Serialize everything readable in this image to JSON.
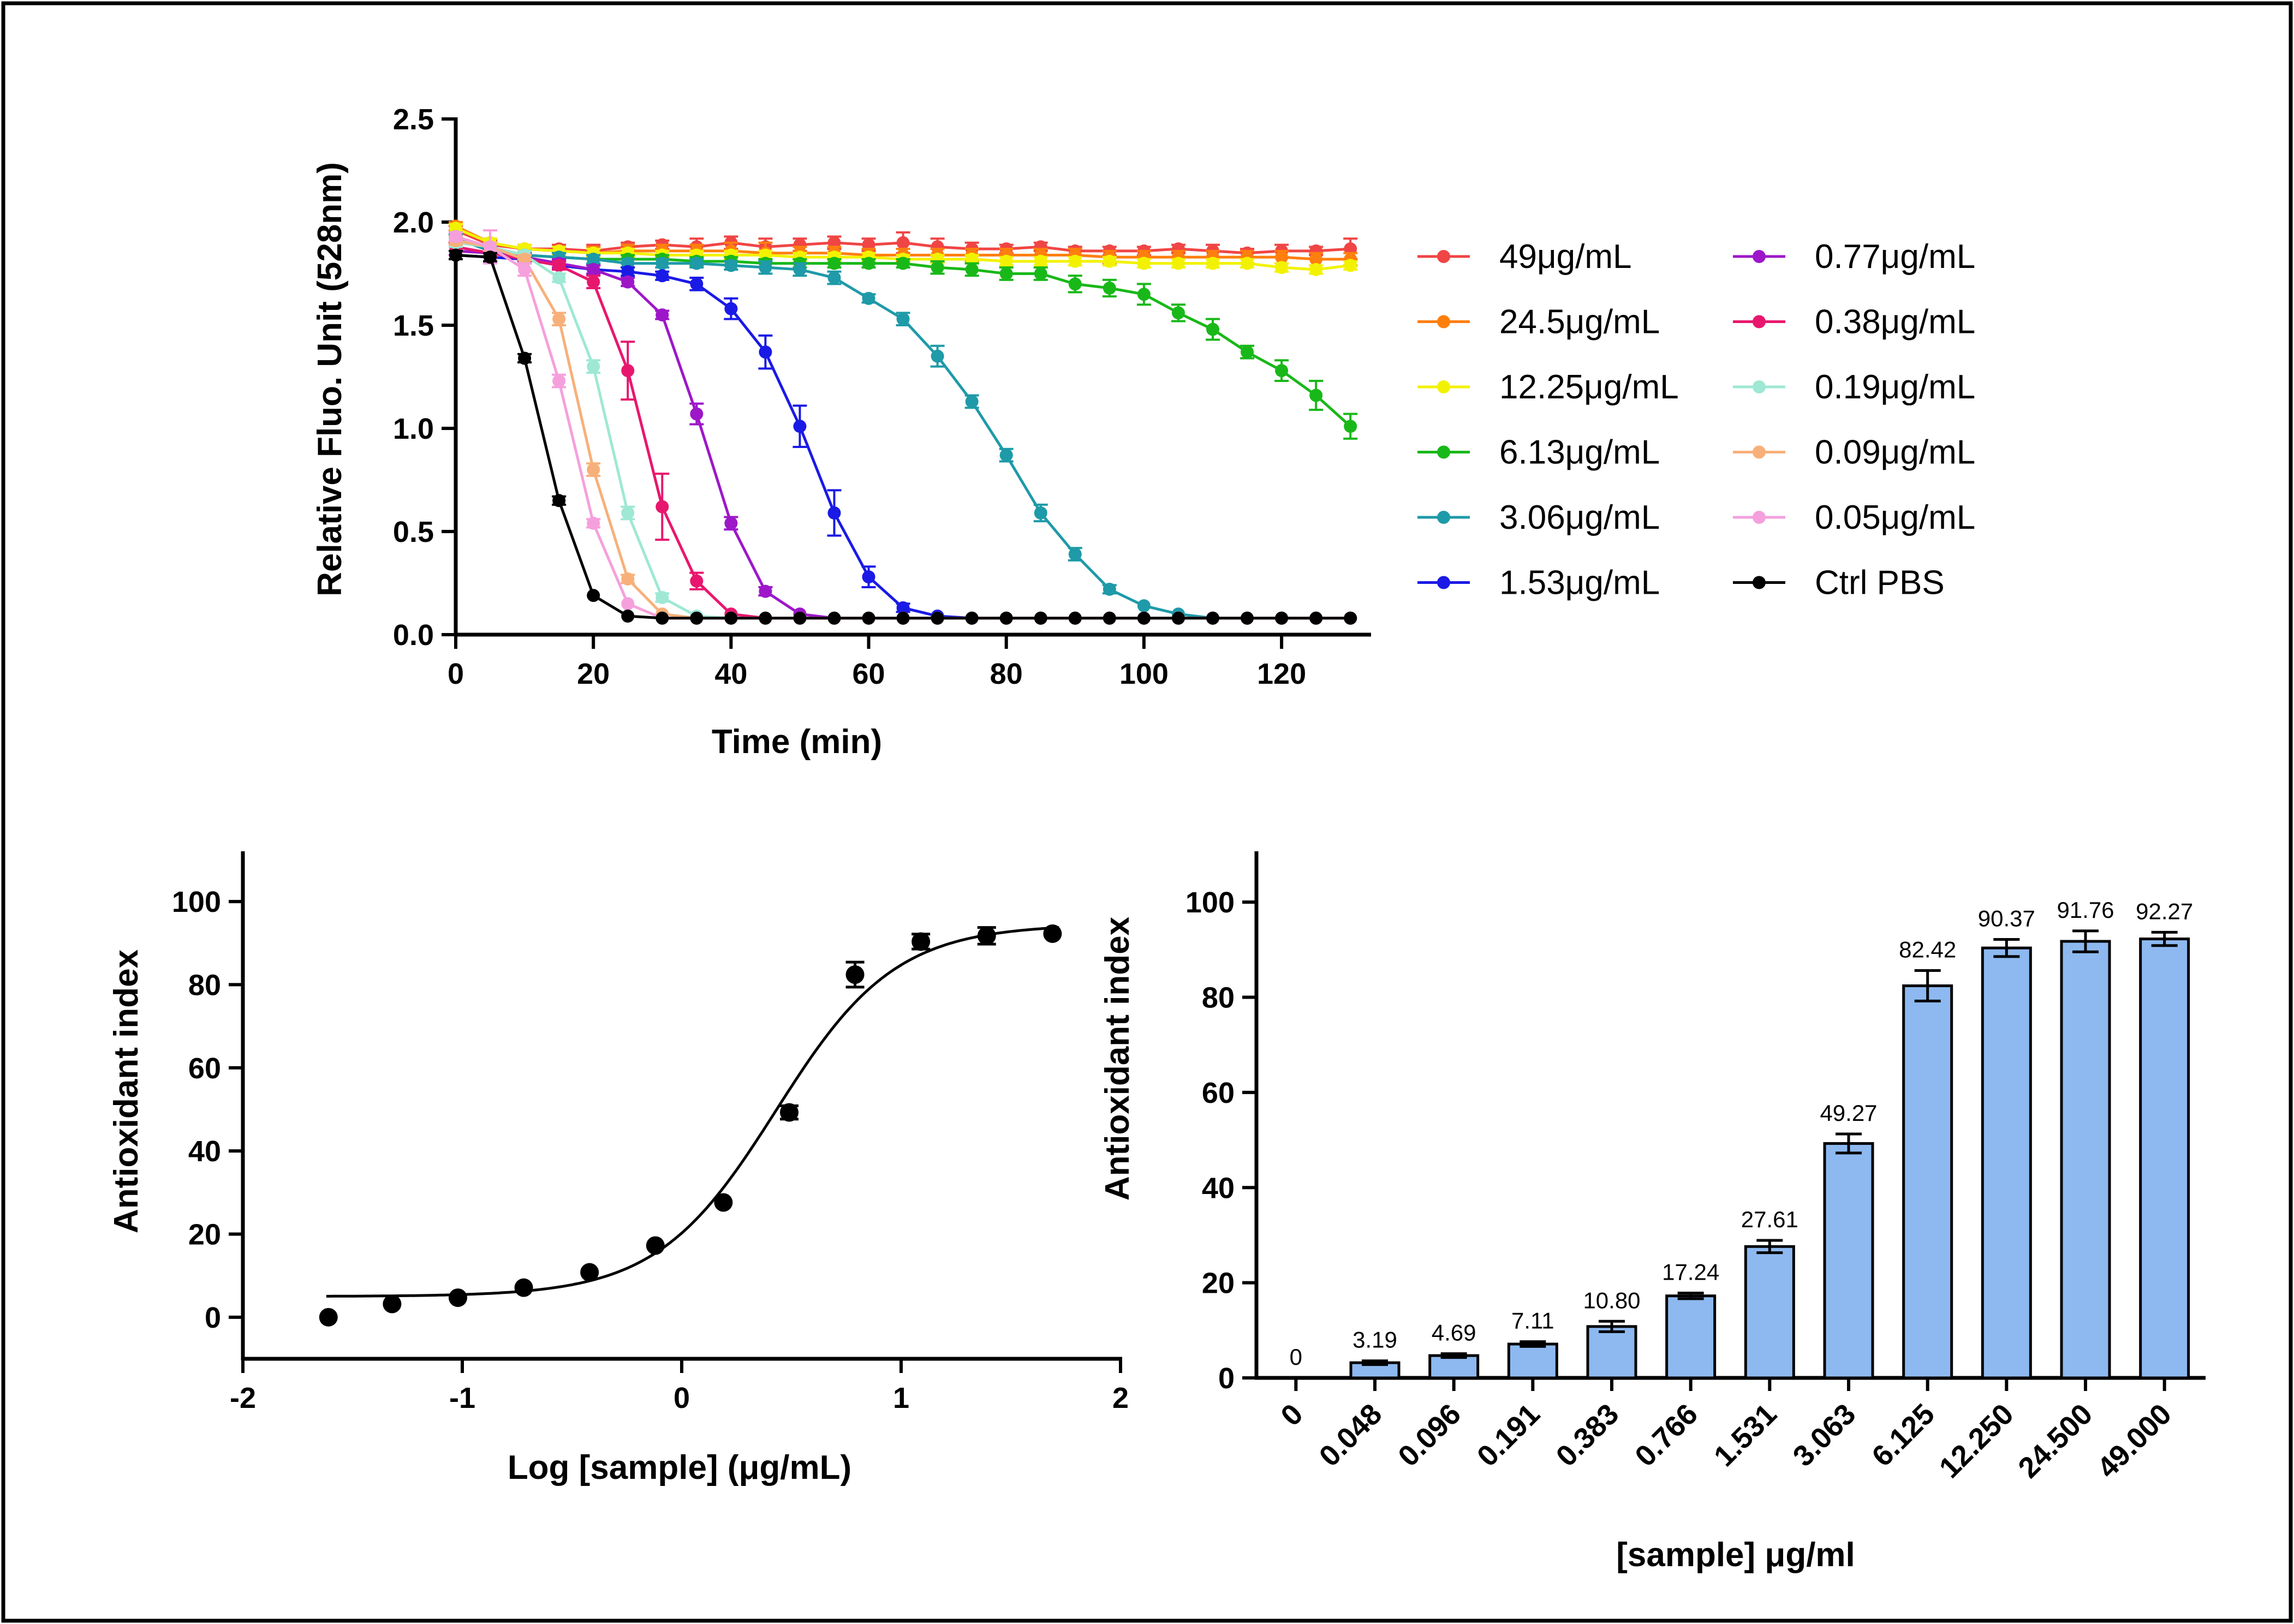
{
  "colors": {
    "frame": "#000000",
    "bar_fill": "#8db9f0",
    "series": {
      "49": "#f04545",
      "24.5": "#ff7f0e",
      "12.25": "#f2f200",
      "6.13": "#19b819",
      "3.06": "#1f9aa8",
      "1.53": "#1a1ae6",
      "0.77": "#9d17c9",
      "0.38": "#e8176e",
      "0.19": "#9ee8d4",
      "0.09": "#f7b07a",
      "0.05": "#f5a0dc",
      "ctrl": "#000000"
    }
  },
  "chart_data": [
    {
      "type": "line",
      "title": "",
      "xlabel": "Time (min)",
      "ylabel": "Relative Fluo. Unit (528nm)",
      "xlim": [
        0,
        133
      ],
      "ylim": [
        0,
        2.5
      ],
      "xticks": [
        0,
        20,
        40,
        60,
        80,
        100,
        120
      ],
      "yticks": [
        0.0,
        0.5,
        1.0,
        1.5,
        2.0,
        2.5
      ],
      "ytick_labels": [
        "0.0",
        "0.5",
        "1.0",
        "1.5",
        "2.0",
        "2.5"
      ],
      "legend_position": "right",
      "x": [
        0,
        5,
        10,
        15,
        20,
        25,
        30,
        35,
        40,
        45,
        50,
        55,
        60,
        65,
        70,
        75,
        80,
        85,
        90,
        95,
        100,
        105,
        110,
        115,
        120,
        125,
        130
      ],
      "series": [
        {
          "key": "49",
          "name": "49μg/mL",
          "values": [
            1.96,
            1.89,
            1.87,
            1.87,
            1.86,
            1.88,
            1.89,
            1.88,
            1.9,
            1.88,
            1.89,
            1.9,
            1.89,
            1.9,
            1.88,
            1.87,
            1.87,
            1.88,
            1.86,
            1.86,
            1.86,
            1.87,
            1.86,
            1.85,
            1.86,
            1.86,
            1.87
          ],
          "err": [
            0.02,
            0.02,
            0.02,
            0.02,
            0.03,
            0.02,
            0.02,
            0.04,
            0.03,
            0.04,
            0.03,
            0.03,
            0.03,
            0.05,
            0.04,
            0.03,
            0.02,
            0.02,
            0.02,
            0.02,
            0.02,
            0.02,
            0.03,
            0.02,
            0.03,
            0.02,
            0.05
          ]
        },
        {
          "key": "24.5",
          "name": "24.5μg/mL",
          "values": [
            1.98,
            1.9,
            1.87,
            1.86,
            1.85,
            1.86,
            1.86,
            1.86,
            1.86,
            1.85,
            1.85,
            1.85,
            1.84,
            1.84,
            1.84,
            1.84,
            1.84,
            1.84,
            1.84,
            1.83,
            1.83,
            1.83,
            1.83,
            1.83,
            1.83,
            1.82,
            1.82
          ],
          "err": [
            0.02,
            0.02,
            0.02,
            0.02,
            0.03,
            0.03,
            0.03,
            0.03,
            0.04,
            0.05,
            0.03,
            0.03,
            0.03,
            0.03,
            0.03,
            0.03,
            0.03,
            0.03,
            0.03,
            0.03,
            0.03,
            0.03,
            0.03,
            0.03,
            0.03,
            0.03,
            0.03
          ]
        },
        {
          "key": "12.25",
          "name": "12.25μg/mL",
          "values": [
            1.97,
            1.9,
            1.87,
            1.86,
            1.85,
            1.85,
            1.84,
            1.84,
            1.84,
            1.84,
            1.83,
            1.83,
            1.83,
            1.82,
            1.82,
            1.82,
            1.81,
            1.81,
            1.81,
            1.81,
            1.8,
            1.8,
            1.8,
            1.8,
            1.78,
            1.77,
            1.79
          ],
          "err": [
            0.02,
            0.02,
            0.02,
            0.02,
            0.02,
            0.02,
            0.02,
            0.02,
            0.02,
            0.02,
            0.02,
            0.02,
            0.02,
            0.02,
            0.02,
            0.02,
            0.02,
            0.02,
            0.02,
            0.02,
            0.02,
            0.02,
            0.02,
            0.02,
            0.02,
            0.02,
            0.02
          ]
        },
        {
          "key": "6.13",
          "name": "6.13μg/mL",
          "values": [
            1.93,
            1.86,
            1.84,
            1.83,
            1.82,
            1.82,
            1.82,
            1.81,
            1.81,
            1.8,
            1.8,
            1.8,
            1.8,
            1.8,
            1.78,
            1.77,
            1.75,
            1.75,
            1.7,
            1.68,
            1.65,
            1.56,
            1.48,
            1.37,
            1.28,
            1.16,
            1.01
          ],
          "err": [
            0.02,
            0.02,
            0.02,
            0.02,
            0.02,
            0.02,
            0.02,
            0.02,
            0.02,
            0.02,
            0.02,
            0.02,
            0.02,
            0.02,
            0.03,
            0.03,
            0.03,
            0.03,
            0.04,
            0.04,
            0.05,
            0.04,
            0.05,
            0.03,
            0.05,
            0.07,
            0.06
          ]
        },
        {
          "key": "3.06",
          "name": "3.06μg/mL",
          "values": [
            1.92,
            1.86,
            1.84,
            1.83,
            1.82,
            1.8,
            1.8,
            1.8,
            1.79,
            1.78,
            1.77,
            1.73,
            1.63,
            1.53,
            1.35,
            1.13,
            0.87,
            0.59,
            0.39,
            0.22,
            0.14,
            0.1,
            0.08,
            0.08,
            0.08,
            0.08,
            0.08
          ],
          "err": [
            0.02,
            0.02,
            0.02,
            0.02,
            0.02,
            0.02,
            0.02,
            0.02,
            0.02,
            0.03,
            0.03,
            0.03,
            0.02,
            0.03,
            0.05,
            0.03,
            0.03,
            0.04,
            0.03,
            0.02,
            0.01,
            0.01,
            0.01,
            0.01,
            0.01,
            0.01,
            0.01
          ]
        },
        {
          "key": "1.53",
          "name": "1.53μg/mL",
          "values": [
            1.84,
            1.83,
            1.82,
            1.79,
            1.77,
            1.76,
            1.74,
            1.7,
            1.58,
            1.37,
            1.01,
            0.59,
            0.28,
            0.13,
            0.09,
            0.08,
            0.08,
            0.08,
            0.08,
            0.08,
            0.08,
            0.08,
            0.08,
            0.08,
            0.08,
            0.08,
            0.08
          ],
          "err": [
            0.02,
            0.02,
            0.02,
            0.02,
            0.02,
            0.02,
            0.02,
            0.03,
            0.05,
            0.08,
            0.1,
            0.11,
            0.05,
            0.02,
            0.01,
            0.01,
            0.01,
            0.01,
            0.01,
            0.01,
            0.01,
            0.01,
            0.01,
            0.01,
            0.01,
            0.01,
            0.01
          ]
        },
        {
          "key": "0.77",
          "name": "0.77μg/mL",
          "values": [
            1.86,
            1.85,
            1.83,
            1.8,
            1.77,
            1.71,
            1.55,
            1.07,
            0.54,
            0.21,
            0.1,
            0.08,
            0.08,
            0.08,
            0.08,
            0.08,
            0.08,
            0.08,
            0.08,
            0.08,
            0.08,
            0.08,
            0.08,
            0.08,
            0.08,
            0.08,
            0.08
          ],
          "err": [
            0.02,
            0.02,
            0.02,
            0.02,
            0.02,
            0.02,
            0.02,
            0.05,
            0.03,
            0.02,
            0.01,
            0.01,
            0.01,
            0.01,
            0.01,
            0.01,
            0.01,
            0.01,
            0.01,
            0.01,
            0.01,
            0.01,
            0.01,
            0.01,
            0.01,
            0.01,
            0.01
          ]
        },
        {
          "key": "0.38",
          "name": "0.38μg/mL",
          "values": [
            1.88,
            1.85,
            1.82,
            1.79,
            1.71,
            1.28,
            0.62,
            0.26,
            0.1,
            0.08,
            0.08,
            0.08,
            0.08,
            0.08,
            0.08,
            0.08,
            0.08,
            0.08,
            0.08,
            0.08,
            0.08,
            0.08,
            0.08,
            0.08,
            0.08,
            0.08,
            0.08
          ],
          "err": [
            0.02,
            0.02,
            0.02,
            0.02,
            0.03,
            0.14,
            0.16,
            0.04,
            0.01,
            0.01,
            0.01,
            0.01,
            0.01,
            0.01,
            0.01,
            0.01,
            0.01,
            0.01,
            0.01,
            0.01,
            0.01,
            0.01,
            0.01,
            0.01,
            0.01,
            0.01,
            0.01
          ]
        },
        {
          "key": "0.19",
          "name": "0.19μg/mL",
          "values": [
            1.9,
            1.88,
            1.84,
            1.73,
            1.3,
            0.59,
            0.18,
            0.09,
            0.08,
            0.08,
            0.08,
            0.08,
            0.08,
            0.08,
            0.08,
            0.08,
            0.08,
            0.08,
            0.08,
            0.08,
            0.08,
            0.08,
            0.08,
            0.08,
            0.08,
            0.08,
            0.08
          ],
          "err": [
            0.02,
            0.02,
            0.02,
            0.02,
            0.03,
            0.03,
            0.02,
            0.01,
            0.01,
            0.01,
            0.01,
            0.01,
            0.01,
            0.01,
            0.01,
            0.01,
            0.01,
            0.01,
            0.01,
            0.01,
            0.01,
            0.01,
            0.01,
            0.01,
            0.01,
            0.01,
            0.01
          ]
        },
        {
          "key": "0.09",
          "name": "0.09μg/mL",
          "values": [
            1.91,
            1.88,
            1.82,
            1.53,
            0.8,
            0.27,
            0.1,
            0.08,
            0.08,
            0.08,
            0.08,
            0.08,
            0.08,
            0.08,
            0.08,
            0.08,
            0.08,
            0.08,
            0.08,
            0.08,
            0.08,
            0.08,
            0.08,
            0.08,
            0.08,
            0.08,
            0.08
          ],
          "err": [
            0.02,
            0.02,
            0.02,
            0.03,
            0.03,
            0.02,
            0.01,
            0.01,
            0.01,
            0.01,
            0.01,
            0.01,
            0.01,
            0.01,
            0.01,
            0.01,
            0.01,
            0.01,
            0.01,
            0.01,
            0.01,
            0.01,
            0.01,
            0.01,
            0.01,
            0.01,
            0.01
          ]
        },
        {
          "key": "0.05",
          "name": "0.05μg/mL",
          "values": [
            1.93,
            1.88,
            1.77,
            1.23,
            0.54,
            0.15,
            0.08,
            0.08,
            0.08,
            0.08,
            0.08,
            0.08,
            0.08,
            0.08,
            0.08,
            0.08,
            0.08,
            0.08,
            0.08,
            0.08,
            0.08,
            0.08,
            0.08,
            0.08,
            0.08,
            0.08,
            0.08
          ],
          "err": [
            0.02,
            0.08,
            0.03,
            0.03,
            0.02,
            0.01,
            0.01,
            0.01,
            0.01,
            0.01,
            0.01,
            0.01,
            0.01,
            0.01,
            0.01,
            0.01,
            0.01,
            0.01,
            0.01,
            0.01,
            0.01,
            0.01,
            0.01,
            0.01,
            0.01,
            0.01,
            0.01
          ]
        },
        {
          "key": "ctrl",
          "name": "Ctrl PBS",
          "values": [
            1.84,
            1.83,
            1.34,
            0.65,
            0.19,
            0.09,
            0.08,
            0.08,
            0.08,
            0.08,
            0.08,
            0.08,
            0.08,
            0.08,
            0.08,
            0.08,
            0.08,
            0.08,
            0.08,
            0.08,
            0.08,
            0.08,
            0.08,
            0.08,
            0.08,
            0.08,
            0.08
          ],
          "err": [
            0.02,
            0.02,
            0.02,
            0.02,
            0.01,
            0.01,
            0.01,
            0.01,
            0.01,
            0.01,
            0.01,
            0.01,
            0.01,
            0.01,
            0.01,
            0.01,
            0.01,
            0.01,
            0.01,
            0.01,
            0.01,
            0.01,
            0.01,
            0.01,
            0.01,
            0.01,
            0.01
          ]
        }
      ]
    },
    {
      "type": "scatter",
      "title": "",
      "xlabel": "Log [sample] (μg/mL)",
      "ylabel": "Antioxidant index",
      "xlim": [
        -2,
        2
      ],
      "ylim": [
        -10,
        110
      ],
      "xticks": [
        -2,
        -1,
        0,
        1,
        2
      ],
      "yticks": [
        0,
        20,
        40,
        60,
        80,
        100
      ],
      "points": [
        {
          "x": -1.61,
          "y": 0,
          "err": 0.5
        },
        {
          "x": -1.32,
          "y": 3.19,
          "err": 0.5
        },
        {
          "x": -1.02,
          "y": 4.69,
          "err": 0.5
        },
        {
          "x": -0.72,
          "y": 7.11,
          "err": 0.5
        },
        {
          "x": -0.42,
          "y": 10.8,
          "err": 0.8
        },
        {
          "x": -0.12,
          "y": 17.24,
          "err": 0.5
        },
        {
          "x": 0.19,
          "y": 27.61,
          "err": 1.2
        },
        {
          "x": 0.49,
          "y": 49.27,
          "err": 1.6
        },
        {
          "x": 0.79,
          "y": 82.42,
          "err": 3.0
        },
        {
          "x": 1.09,
          "y": 90.37,
          "err": 1.8
        },
        {
          "x": 1.39,
          "y": 91.76,
          "err": 2.0
        },
        {
          "x": 1.69,
          "y": 92.27,
          "err": 1.2
        }
      ],
      "fit": {
        "model": "sigmoid",
        "bottom": 5,
        "top": 94.5,
        "logEC50": 0.43,
        "hillslope": 1.6
      }
    },
    {
      "type": "bar",
      "title": "",
      "xlabel": "[sample] μg/ml",
      "ylabel": "Antioxidant index",
      "ylim": [
        0,
        110
      ],
      "yticks": [
        0,
        20,
        40,
        60,
        80,
        100
      ],
      "categories": [
        "0",
        "0.048",
        "0.096",
        "0.191",
        "0.383",
        "0.766",
        "1.531",
        "3.063",
        "6.125",
        "12.250",
        "24.500",
        "49.000"
      ],
      "values": [
        0,
        3.19,
        4.69,
        7.11,
        10.8,
        17.24,
        27.61,
        49.27,
        82.42,
        90.37,
        91.76,
        92.27
      ],
      "value_labels": [
        "0",
        "3.19",
        "4.69",
        "7.11",
        "10.80",
        "17.24",
        "27.61",
        "49.27",
        "82.42",
        "90.37",
        "91.76",
        "92.27"
      ],
      "errors": [
        0,
        0.4,
        0.4,
        0.5,
        1.1,
        0.6,
        1.3,
        2.0,
        3.2,
        1.8,
        2.2,
        1.4
      ]
    }
  ]
}
